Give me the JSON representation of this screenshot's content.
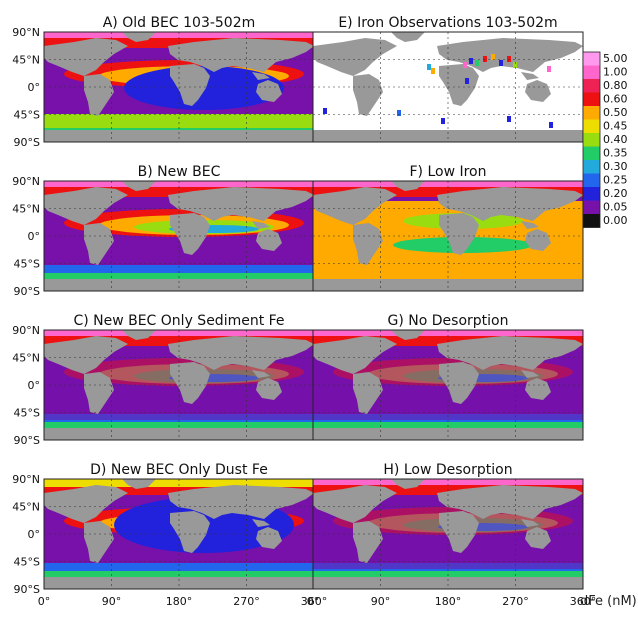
{
  "figure": {
    "panels": [
      {
        "id": "A",
        "title": "A) Old BEC 103-502m"
      },
      {
        "id": "B",
        "title": "B) New BEC"
      },
      {
        "id": "C",
        "title": "C) New BEC Only Sediment Fe"
      },
      {
        "id": "D",
        "title": "D) New BEC Only Dust Fe"
      },
      {
        "id": "E",
        "title": "E) Iron Observations 103-502m"
      },
      {
        "id": "F",
        "title": "F) Low Iron"
      },
      {
        "id": "G",
        "title": "G) No Desorption"
      },
      {
        "id": "H",
        "title": "H) Low Desorption"
      }
    ],
    "lat_ticks": [
      "90°N",
      "45°N",
      "0°",
      "45°S",
      "90°S"
    ],
    "lon_ticks": [
      "0°",
      "90°",
      "180°",
      "270°",
      "360°"
    ],
    "colorbar": {
      "levels": [
        "5.00",
        "1.00",
        "0.80",
        "0.60",
        "0.50",
        "0.45",
        "0.40",
        "0.35",
        "0.30",
        "0.25",
        "0.20",
        "0.05",
        "0.00"
      ],
      "colors": [
        "#ff99ee",
        "#ff66cc",
        "#ee2255",
        "#ee1111",
        "#ffaa00",
        "#eedd00",
        "#99dd11",
        "#22cc66",
        "#22aadd",
        "#2266ee",
        "#2222dd",
        "#7711aa",
        "#111111"
      ],
      "label": "dFe (nM)"
    },
    "land_color": "#999999"
  }
}
